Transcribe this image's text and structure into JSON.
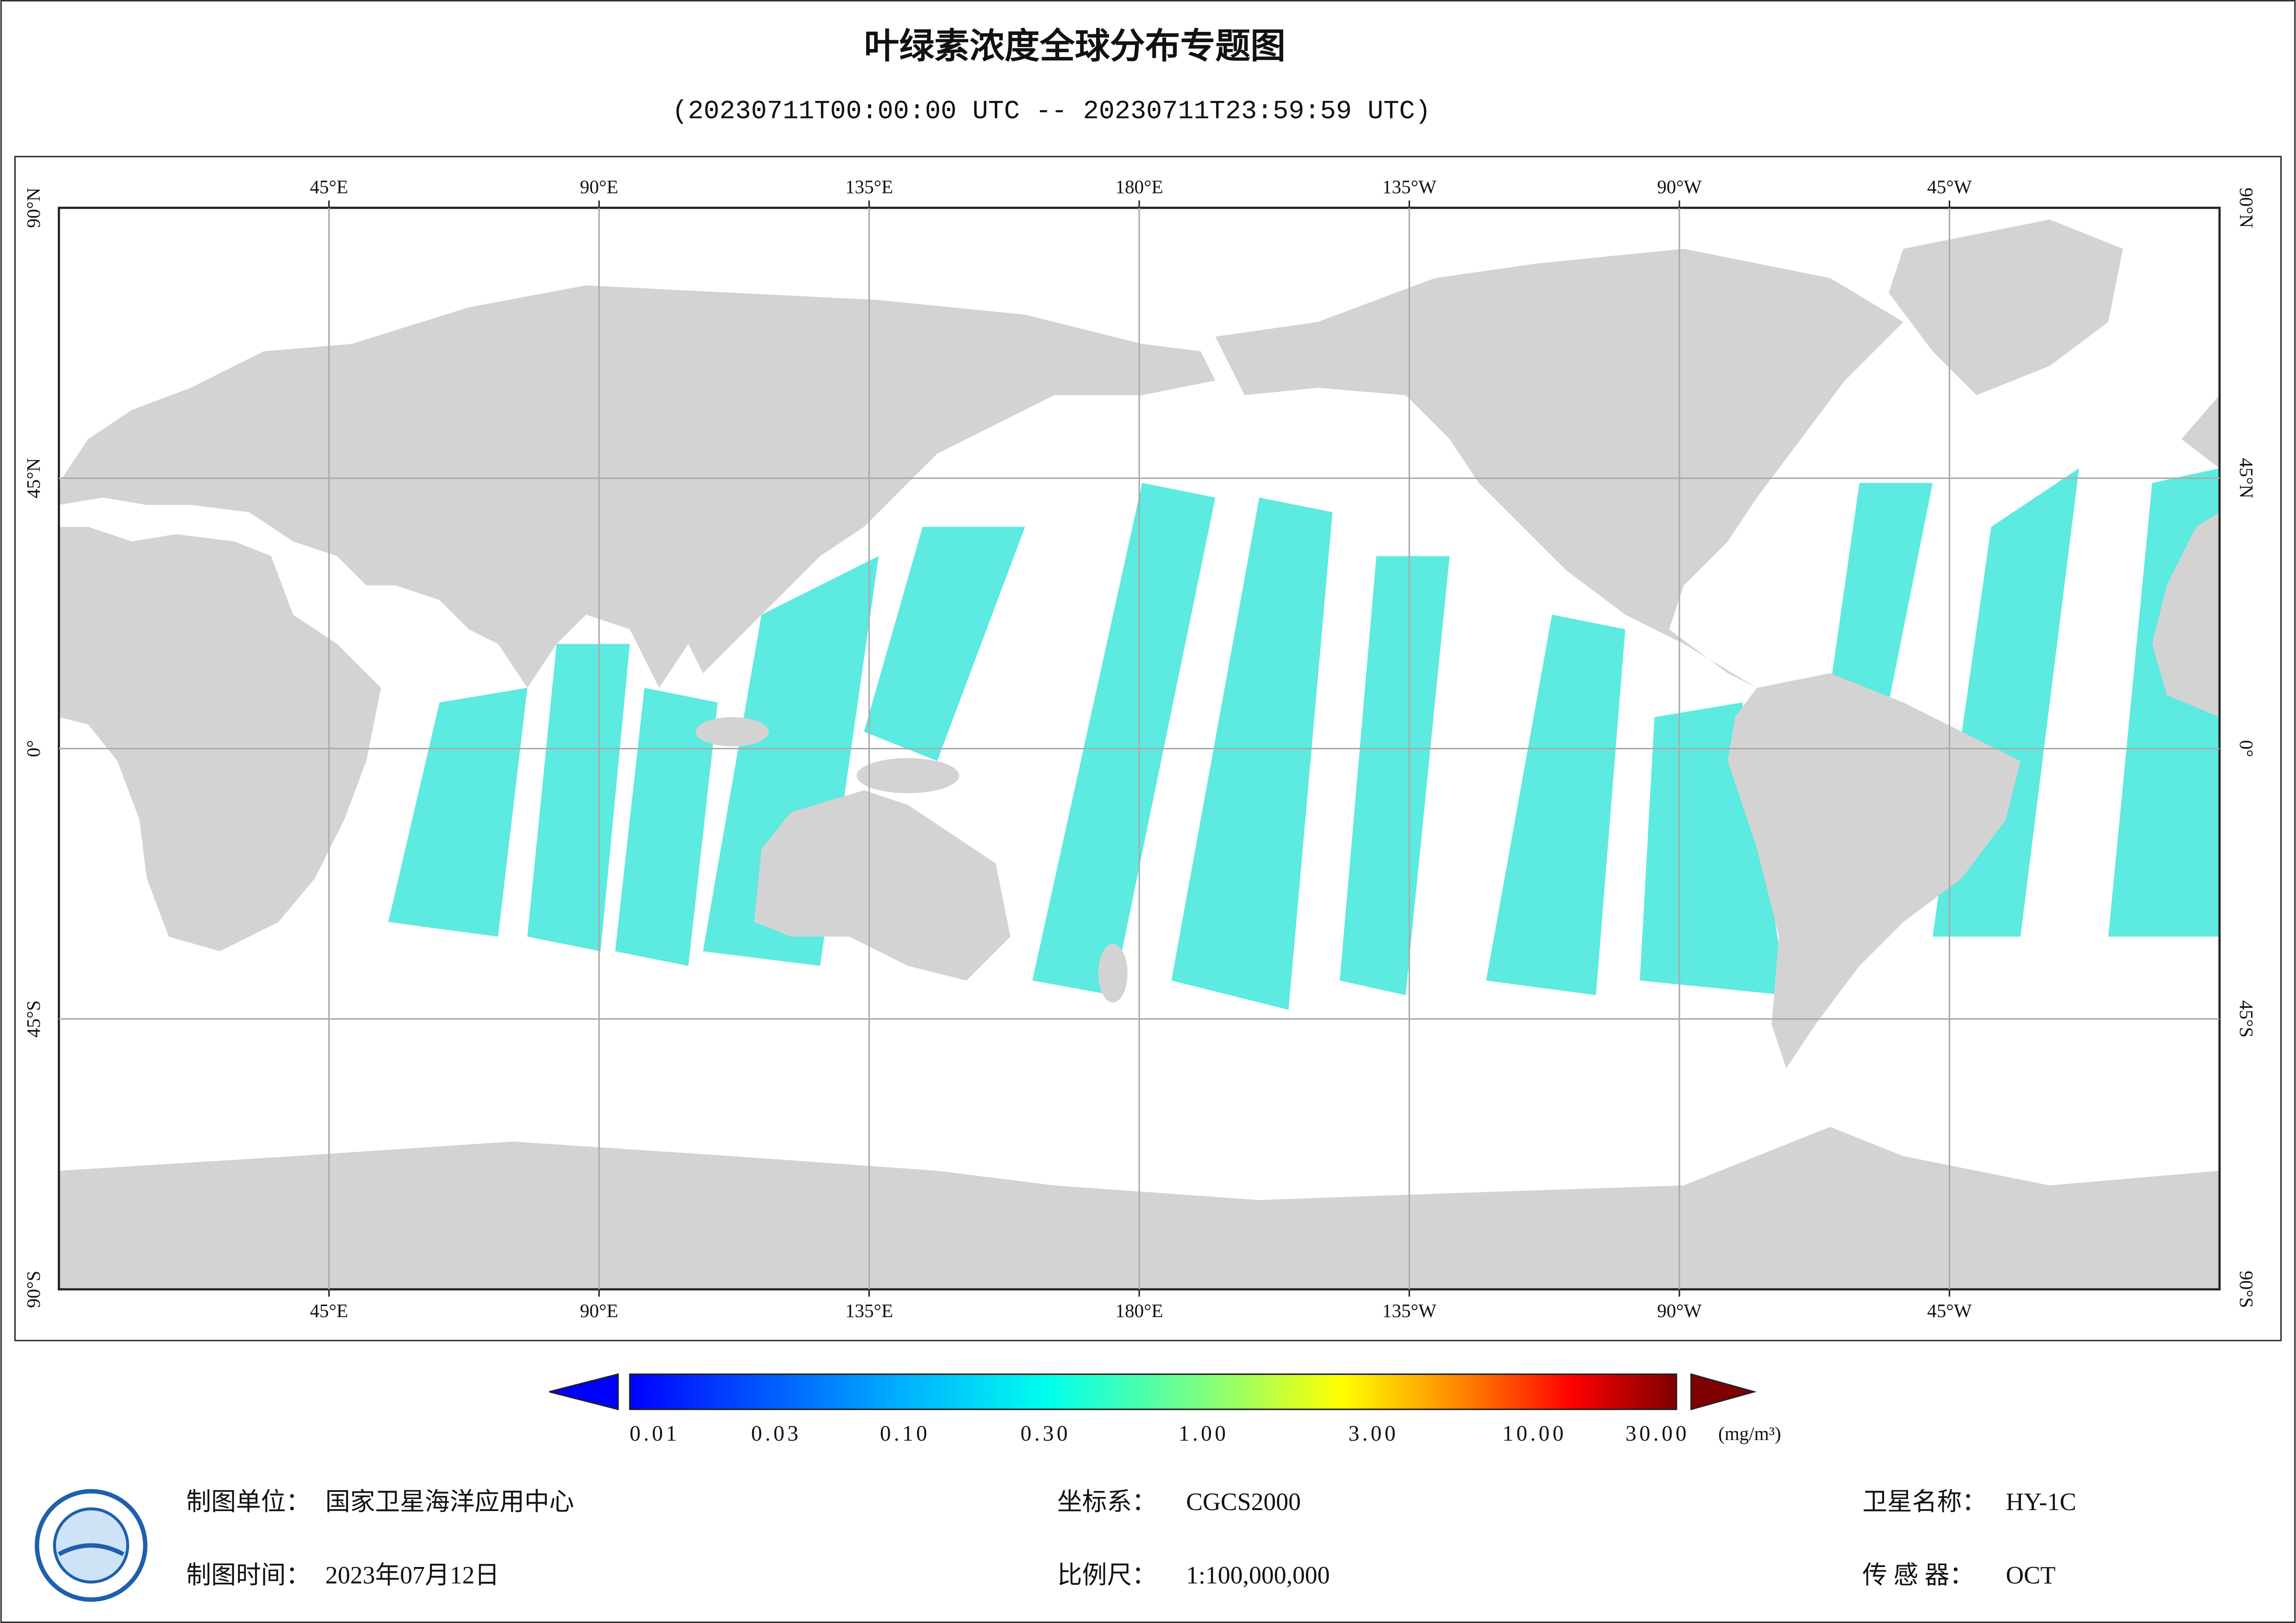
{
  "title": "叶绿素浓度全球分布专题图",
  "subtitle": "(20230711T00:00:00 UTC -- 20230711T23:59:59 UTC)",
  "map": {
    "lon_labels": [
      "45°E",
      "90°E",
      "135°E",
      "180°E",
      "135°W",
      "90°W",
      "45°W"
    ],
    "lat_labels": [
      "90°N",
      "45°N",
      "0°",
      "45°S",
      "90°S"
    ]
  },
  "colorbar": {
    "ticks": [
      "0.01",
      "0.03",
      "0.10",
      "0.30",
      "1.00",
      "3.00",
      "10.00",
      "30.00"
    ],
    "unit": "(mg/m³)"
  },
  "footer": [
    {
      "label": "制图单位：",
      "value": "国家卫星海洋应用中心"
    },
    {
      "label": "坐标系：",
      "value": "CGCS2000"
    },
    {
      "label": "卫星名称：",
      "value": "HY-1C"
    },
    {
      "label": "制图时间：",
      "value": "2023年07月12日"
    },
    {
      "label": "比例尺：",
      "value": "1:100,000,000"
    },
    {
      "label": "传 感 器：",
      "value": "OCT"
    }
  ]
}
